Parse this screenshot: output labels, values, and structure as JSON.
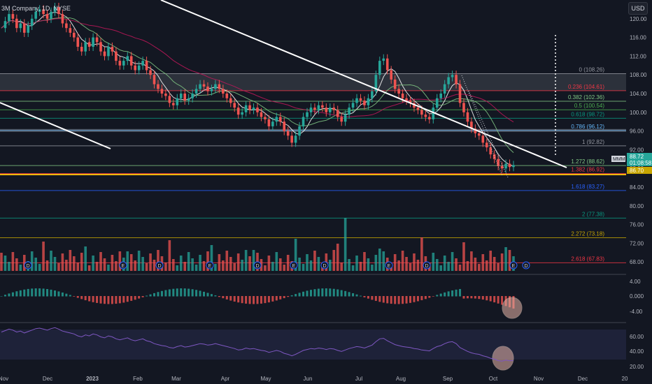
{
  "header": {
    "symbol_title": "3M Company, 1D, NYSE",
    "currency": "USD"
  },
  "price_axis": {
    "ticks": [
      "120.00",
      "116.00",
      "112.00",
      "108.00",
      "104.00",
      "100.00",
      "96.00",
      "92.00",
      "88.00",
      "84.00",
      "80.00",
      "76.00",
      "72.00",
      "68.00"
    ],
    "badges": [
      {
        "text": "88.72",
        "color": "#26a69a"
      },
      {
        "text": "01:08:58",
        "color": "#26a69a"
      },
      {
        "text": "86.70",
        "color": "#c8a600"
      }
    ],
    "ticker_tag": "MMM"
  },
  "macd_axis": {
    "ticks": [
      "4.00",
      "0.000",
      "-4.00"
    ]
  },
  "rsi_axis": {
    "ticks": [
      "60.00",
      "40.00",
      "20.00"
    ]
  },
  "time_axis": {
    "ticks": [
      "Nov",
      "Dec",
      "2023",
      "Feb",
      "Mar",
      "Apr",
      "May",
      "Jun",
      "Jul",
      "Aug",
      "Sep",
      "Oct",
      "Nov",
      "Dec",
      "20"
    ]
  },
  "event_markers": [
    "D",
    "E",
    "D",
    "E",
    "D",
    "E",
    "D",
    "E",
    "D",
    "E"
  ],
  "chart_data": {
    "type": "candlestick",
    "symbol": "3M Company",
    "interval": "1D",
    "exchange": "NYSE",
    "ylim": [
      65.5,
      124
    ],
    "fib_levels": [
      {
        "label": "0 (108.26)",
        "value": 108.26,
        "color": "#9598a1"
      },
      {
        "label": "0.236 (104.61)",
        "value": 104.61,
        "color": "#f23645"
      },
      {
        "label": "0.382 (102.36)",
        "value": 102.36,
        "color": "#81c784"
      },
      {
        "label": "0.5 (100.54)",
        "value": 100.54,
        "color": "#4caf50"
      },
      {
        "label": "0.618 (98.72)",
        "value": 98.72,
        "color": "#089981"
      },
      {
        "label": "0.786 (96.12)",
        "value": 96.12,
        "color": "#64b5f6"
      },
      {
        "label": "1 (92.82)",
        "value": 92.82,
        "color": "#9598a1"
      },
      {
        "label": "1.272 (88.62)",
        "value": 88.62,
        "color": "#81c784"
      },
      {
        "label": "1.382 (86.92)",
        "value": 86.92,
        "color": "#f23645"
      },
      {
        "label": "1.618 (83.27)",
        "value": 83.27,
        "color": "#2962ff"
      },
      {
        "label": "2 (77.38)",
        "value": 77.38,
        "color": "#089981"
      },
      {
        "label": "2.272 (73.18)",
        "value": 73.18,
        "color": "#c8a600"
      },
      {
        "label": "2.618 (67.83)",
        "value": 67.83,
        "color": "#f23645"
      }
    ],
    "last_price": 88.72,
    "support_line": 86.7,
    "price_series_approx": [
      118,
      119.5,
      121,
      120,
      118,
      119,
      117,
      118.5,
      120,
      121.5,
      122,
      121,
      120,
      121.5,
      122.5,
      121,
      119,
      118,
      117,
      116,
      114,
      113,
      115,
      114,
      116,
      115,
      113,
      112,
      114,
      113,
      111,
      110,
      111,
      112,
      110,
      109,
      110,
      111,
      109,
      108,
      106,
      105,
      104,
      103.5,
      102,
      101.5,
      103,
      104,
      102.5,
      103,
      104,
      105,
      106,
      105.5,
      104.5,
      105,
      106,
      105,
      104,
      103,
      102,
      101,
      99.5,
      100,
      101.5,
      100.5,
      101,
      100,
      99,
      98.5,
      97,
      98,
      99,
      98,
      96,
      95,
      93.5,
      95,
      97,
      99,
      100,
      101,
      100.5,
      101.5,
      101,
      100,
      101,
      100.5,
      99,
      98,
      99.5,
      101,
      102,
      103,
      102.5,
      101.5,
      103,
      104.5,
      108,
      111,
      111.5,
      109,
      107,
      105,
      104,
      103,
      102.5,
      102,
      101,
      100.5,
      99.5,
      99,
      98.5,
      101,
      103,
      104,
      106,
      107.5,
      108,
      106,
      102,
      100,
      98,
      96.5,
      95.5,
      95,
      93.5,
      92.5,
      91,
      90,
      88.5,
      88,
      89,
      88.3,
      88.72
    ]
  }
}
